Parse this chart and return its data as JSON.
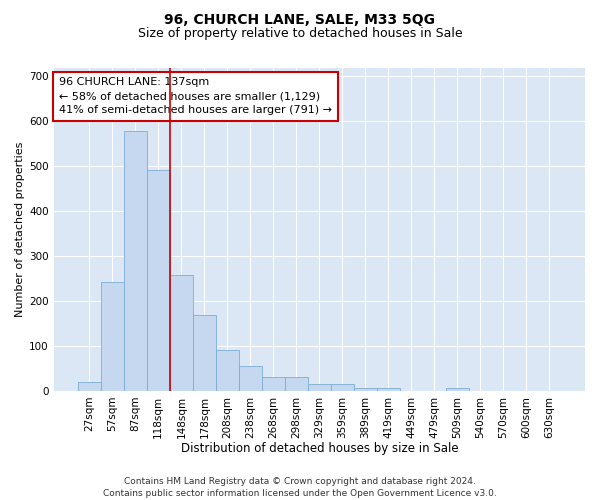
{
  "title1": "96, CHURCH LANE, SALE, M33 5QG",
  "title2": "Size of property relative to detached houses in Sale",
  "xlabel": "Distribution of detached houses by size in Sale",
  "ylabel": "Number of detached properties",
  "categories": [
    "27sqm",
    "57sqm",
    "87sqm",
    "118sqm",
    "148sqm",
    "178sqm",
    "208sqm",
    "238sqm",
    "268sqm",
    "298sqm",
    "329sqm",
    "359sqm",
    "389sqm",
    "419sqm",
    "449sqm",
    "479sqm",
    "509sqm",
    "540sqm",
    "570sqm",
    "600sqm",
    "630sqm"
  ],
  "values": [
    20,
    242,
    578,
    492,
    258,
    168,
    90,
    55,
    30,
    30,
    15,
    15,
    7,
    7,
    0,
    0,
    7,
    0,
    0,
    0,
    0
  ],
  "bar_color": "#c5d8f0",
  "bar_edge_color": "#7aadd4",
  "bg_color": "#dce7f5",
  "grid_color": "#ffffff",
  "vline_x": 3.5,
  "vline_color": "#cc0000",
  "annotation_text": "96 CHURCH LANE: 137sqm\n← 58% of detached houses are smaller (1,129)\n41% of semi-detached houses are larger (791) →",
  "annotation_box_facecolor": "#ffffff",
  "annotation_box_edgecolor": "#cc0000",
  "ylim": [
    0,
    720
  ],
  "yticks": [
    0,
    100,
    200,
    300,
    400,
    500,
    600,
    700
  ],
  "footnote": "Contains HM Land Registry data © Crown copyright and database right 2024.\nContains public sector information licensed under the Open Government Licence v3.0.",
  "title1_fontsize": 10,
  "title2_fontsize": 9,
  "xlabel_fontsize": 8.5,
  "ylabel_fontsize": 8,
  "tick_fontsize": 7.5,
  "annot_fontsize": 8,
  "footnote_fontsize": 6.5
}
